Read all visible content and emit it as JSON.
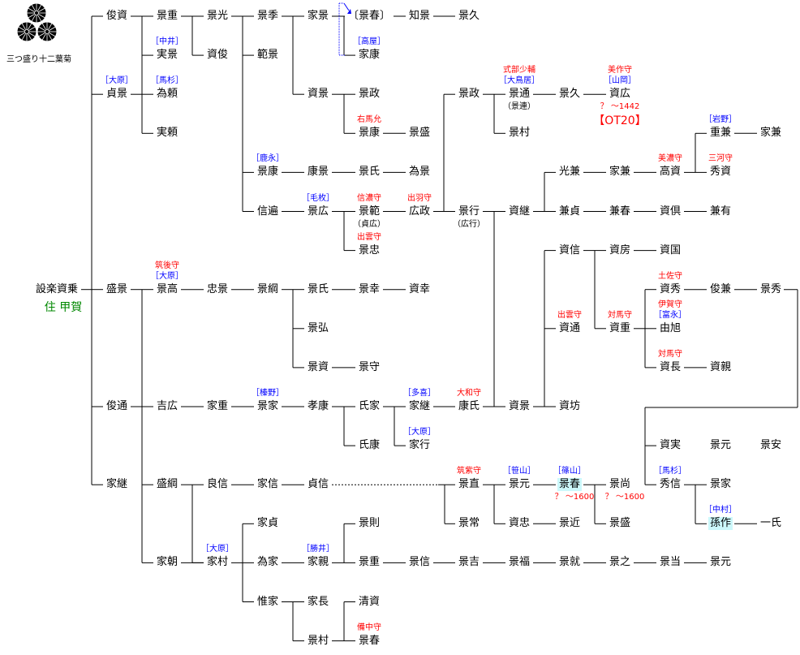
{
  "crest": {
    "caption": "三つ盛り十二葉菊",
    "icon": "chrysanthemum-crest-icon"
  },
  "colors": {
    "title": "#ff0000",
    "clan": "#0000ff",
    "residence": "#008000",
    "highlight": "#ccf8fb"
  },
  "nodes": [
    {
      "name": "設楽資乗",
      "note": "住 甲賀"
    },
    {
      "name": "俊資"
    },
    {
      "name": "貞景",
      "clan": "［大原］"
    },
    {
      "name": "盛景"
    },
    {
      "name": "俊通"
    },
    {
      "name": "家継"
    },
    {
      "name": "景重"
    },
    {
      "name": "実景",
      "clan": "［中井］"
    },
    {
      "name": "為頼",
      "clan": "［馬杉］"
    },
    {
      "name": "実頼"
    },
    {
      "name": "景光"
    },
    {
      "name": "資俊"
    },
    {
      "name": "景季"
    },
    {
      "name": "範景"
    },
    {
      "name": "景康",
      "clan": "［鹿永］"
    },
    {
      "name": "信遍"
    },
    {
      "name": "家景"
    },
    {
      "name": "資景"
    },
    {
      "name": "康景"
    },
    {
      "name": "景広",
      "clan": "［毛枚］"
    },
    {
      "name": "〔景春〕"
    },
    {
      "name": "家康",
      "clan": "［高屋］"
    },
    {
      "name": "景政"
    },
    {
      "name": "景康",
      "title": "右馬允"
    },
    {
      "name": "景氏"
    },
    {
      "name": "景範",
      "title": "信濃守",
      "alt": "（貞広）"
    },
    {
      "name": "景忠",
      "title": "出雲守"
    },
    {
      "name": "知景"
    },
    {
      "name": "景久"
    },
    {
      "name": "景盛"
    },
    {
      "name": "為景"
    },
    {
      "name": "広政",
      "title": "出羽守"
    },
    {
      "name": "景政"
    },
    {
      "name": "景行",
      "alt": "（広行）"
    },
    {
      "name": "景通",
      "title": "式部少輔",
      "clan": "［大鳥居］",
      "alt": "（景連）"
    },
    {
      "name": "景村"
    },
    {
      "name": "景久"
    },
    {
      "name": "資広",
      "title": "美作守",
      "clan": "［山岡］",
      "dates": "？ ～1442",
      "ref": "【OT20】"
    },
    {
      "name": "資継"
    },
    {
      "name": "光兼"
    },
    {
      "name": "兼貞"
    },
    {
      "name": "家兼"
    },
    {
      "name": "兼春"
    },
    {
      "name": "高資",
      "title": "美濃守"
    },
    {
      "name": "資倶"
    },
    {
      "name": "重兼",
      "clan": "［岩野］"
    },
    {
      "name": "家兼"
    },
    {
      "name": "秀資",
      "title": "三河守"
    },
    {
      "name": "兼有"
    },
    {
      "name": "資信"
    },
    {
      "name": "資房"
    },
    {
      "name": "資国"
    },
    {
      "name": "資通",
      "title": "出雲守"
    },
    {
      "name": "資重",
      "title": "対馬守"
    },
    {
      "name": "資秀",
      "title": "土佐守"
    },
    {
      "name": "俊兼"
    },
    {
      "name": "景秀"
    },
    {
      "name": "由旭",
      "title": "伊賀守",
      "clan": "［富永］"
    },
    {
      "name": "資長",
      "title": "対馬守"
    },
    {
      "name": "資親"
    },
    {
      "name": "資坊"
    },
    {
      "name": "景高",
      "title": "筑後守",
      "clan": "［大原］"
    },
    {
      "name": "忠景"
    },
    {
      "name": "景綱"
    },
    {
      "name": "景氏"
    },
    {
      "name": "景幸"
    },
    {
      "name": "資幸"
    },
    {
      "name": "景弘"
    },
    {
      "name": "景資"
    },
    {
      "name": "景守"
    },
    {
      "name": "吉広"
    },
    {
      "name": "家重"
    },
    {
      "name": "景家",
      "clan": "［榛野］"
    },
    {
      "name": "孝康"
    },
    {
      "name": "氏家"
    },
    {
      "name": "氏康"
    },
    {
      "name": "家継",
      "clan": "［多喜］"
    },
    {
      "name": "家行",
      "clan": "［大原］"
    },
    {
      "name": "康氏",
      "title": "大和守"
    },
    {
      "name": "資景"
    },
    {
      "name": "資実"
    },
    {
      "name": "景元"
    },
    {
      "name": "景安"
    },
    {
      "name": "秀信",
      "clan": "［馬杉］"
    },
    {
      "name": "景家"
    },
    {
      "name": "孫作",
      "clan": "［中村］",
      "highlight": true
    },
    {
      "name": "一氏"
    },
    {
      "name": "盛綱"
    },
    {
      "name": "家朝"
    },
    {
      "name": "良信"
    },
    {
      "name": "家信"
    },
    {
      "name": "貞信"
    },
    {
      "name": "景直",
      "title": "筑紫守"
    },
    {
      "name": "景常"
    },
    {
      "name": "景元",
      "clan": "［笹山］"
    },
    {
      "name": "資忠"
    },
    {
      "name": "景春",
      "clan": "［篠山］",
      "dates": "？ ～1600",
      "highlight": true
    },
    {
      "name": "景近"
    },
    {
      "name": "景尚",
      "dates": "？ ～1600"
    },
    {
      "name": "景盛"
    },
    {
      "name": "家村",
      "clan": "［大原］"
    },
    {
      "name": "家貞"
    },
    {
      "name": "為家"
    },
    {
      "name": "惟家"
    },
    {
      "name": "家親",
      "clan": "［勝井］"
    },
    {
      "name": "景則"
    },
    {
      "name": "景重"
    },
    {
      "name": "景信"
    },
    {
      "name": "景吉"
    },
    {
      "name": "景福"
    },
    {
      "name": "景就"
    },
    {
      "name": "景之"
    },
    {
      "name": "景当"
    },
    {
      "name": "景元"
    },
    {
      "name": "家長"
    },
    {
      "name": "景村"
    },
    {
      "name": "清資"
    },
    {
      "name": "景春",
      "title": "備中守"
    }
  ]
}
